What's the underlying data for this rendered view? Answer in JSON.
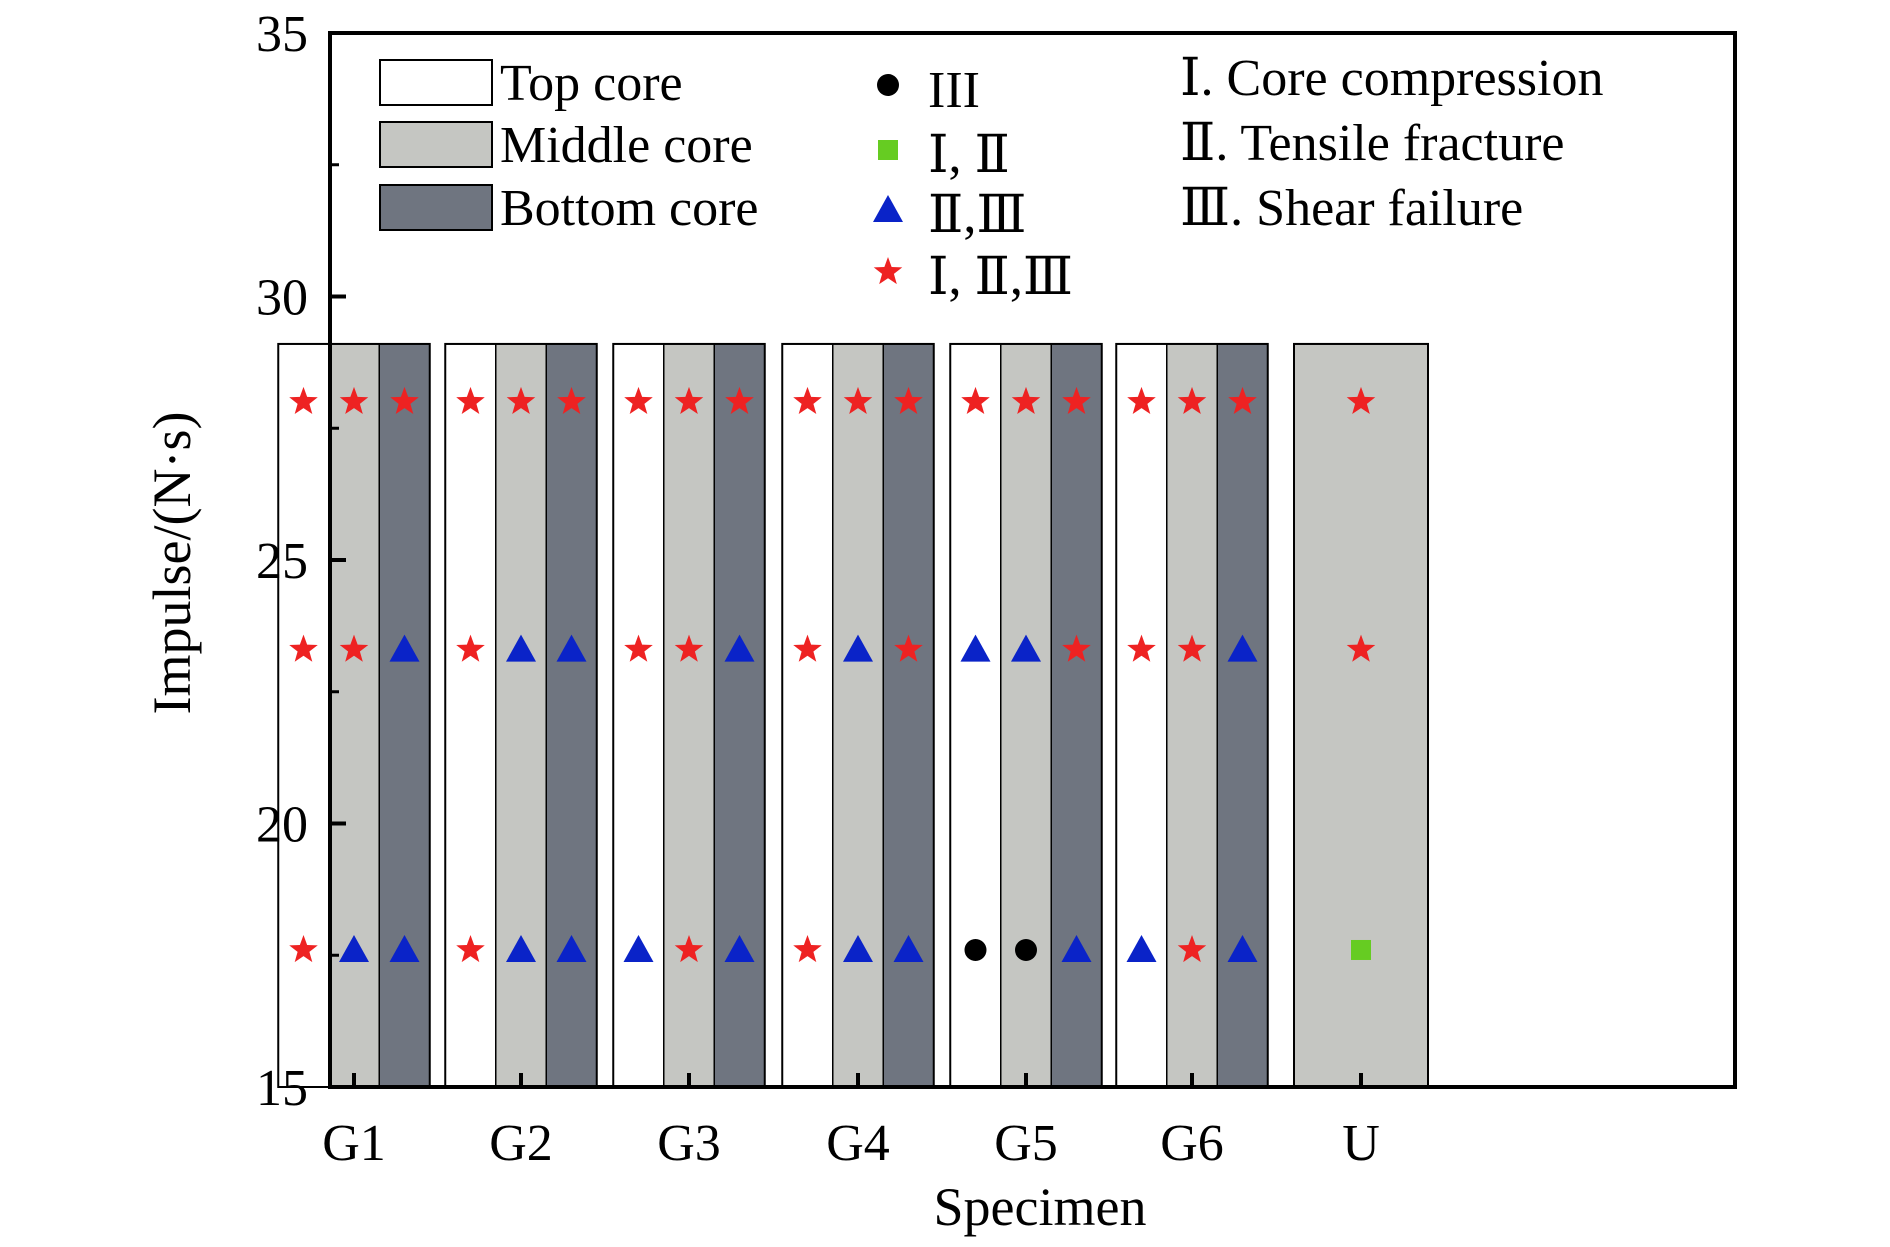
{
  "chart_data": {
    "type": "scatter",
    "title": "",
    "xlabel": "Specimen",
    "ylabel": "Impulse/(N·s)",
    "ylim": [
      15,
      35
    ],
    "yticks": [
      15,
      20,
      25,
      30,
      35
    ],
    "categories": [
      "G1",
      "G2",
      "G3",
      "G4",
      "G5",
      "G6",
      "U"
    ],
    "band_top": 29.1,
    "impulse_levels": [
      17.6,
      23.3,
      28.0
    ],
    "core_legend": [
      {
        "label": "Top core",
        "color": "#ffffff"
      },
      {
        "label": "Middle core",
        "color": "#c5c6c2"
      },
      {
        "label": "Bottom core",
        "color": "#6f7580"
      }
    ],
    "marker_legend": [
      {
        "key": "circle",
        "label": "III",
        "shape": "circle",
        "color": "#000000"
      },
      {
        "key": "square",
        "label": "Ⅰ, Ⅱ",
        "shape": "square",
        "color": "#66cc22"
      },
      {
        "key": "triangle",
        "label": "Ⅱ,Ⅲ",
        "shape": "triangle",
        "color": "#0a23c8"
      },
      {
        "key": "star",
        "label": "Ⅰ, Ⅱ,Ⅲ",
        "shape": "star",
        "color": "#ee2222"
      }
    ],
    "mode_legend": [
      "Ⅰ. Core compression",
      "Ⅱ. Tensile fracture",
      "Ⅲ. Shear failure"
    ],
    "groups": [
      {
        "name": "G1",
        "cores": [
          {
            "core": "Top core",
            "modes": [
              "star",
              "star",
              "star"
            ]
          },
          {
            "core": "Middle core",
            "modes": [
              "triangle",
              "star",
              "star"
            ]
          },
          {
            "core": "Bottom core",
            "modes": [
              "triangle",
              "triangle",
              "star"
            ]
          }
        ]
      },
      {
        "name": "G2",
        "cores": [
          {
            "core": "Top core",
            "modes": [
              "star",
              "star",
              "star"
            ]
          },
          {
            "core": "Middle core",
            "modes": [
              "triangle",
              "triangle",
              "star"
            ]
          },
          {
            "core": "Bottom core",
            "modes": [
              "triangle",
              "triangle",
              "star"
            ]
          }
        ]
      },
      {
        "name": "G3",
        "cores": [
          {
            "core": "Top core",
            "modes": [
              "triangle",
              "star",
              "star"
            ]
          },
          {
            "core": "Middle core",
            "modes": [
              "star",
              "star",
              "star"
            ]
          },
          {
            "core": "Bottom core",
            "modes": [
              "triangle",
              "triangle",
              "star"
            ]
          }
        ]
      },
      {
        "name": "G4",
        "cores": [
          {
            "core": "Top core",
            "modes": [
              "star",
              "star",
              "star"
            ]
          },
          {
            "core": "Middle core",
            "modes": [
              "triangle",
              "triangle",
              "star"
            ]
          },
          {
            "core": "Bottom core",
            "modes": [
              "triangle",
              "star",
              "star"
            ]
          }
        ]
      },
      {
        "name": "G5",
        "cores": [
          {
            "core": "Top core",
            "modes": [
              "circle",
              "triangle",
              "star"
            ]
          },
          {
            "core": "Middle core",
            "modes": [
              "circle",
              "triangle",
              "star"
            ]
          },
          {
            "core": "Bottom core",
            "modes": [
              "triangle",
              "star",
              "star"
            ]
          }
        ]
      },
      {
        "name": "G6",
        "cores": [
          {
            "core": "Top core",
            "modes": [
              "triangle",
              "star",
              "star"
            ]
          },
          {
            "core": "Middle core",
            "modes": [
              "star",
              "star",
              "star"
            ]
          },
          {
            "core": "Bottom core",
            "modes": [
              "triangle",
              "triangle",
              "star"
            ]
          }
        ]
      },
      {
        "name": "U",
        "cores": [
          {
            "core": "Middle core",
            "modes": [
              "square",
              "star",
              "star"
            ]
          }
        ]
      }
    ]
  }
}
